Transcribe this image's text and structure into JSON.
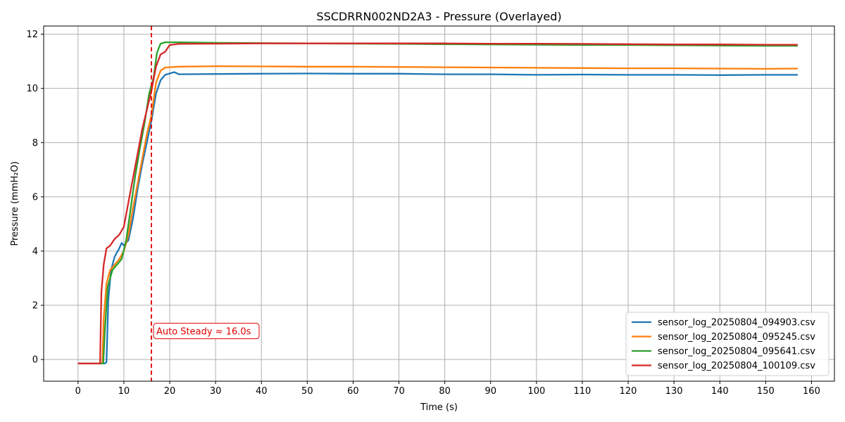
{
  "chart_data": {
    "type": "line",
    "title": "SSCDRRN002ND2A3 - Pressure (Overlayed)",
    "xlabel": "Time (s)",
    "ylabel": "Pressure (mmH₂O)",
    "xlim": [
      -7.5,
      165
    ],
    "ylim": [
      -0.8,
      12.3
    ],
    "xticks": [
      0,
      10,
      20,
      30,
      40,
      50,
      60,
      70,
      80,
      90,
      100,
      110,
      120,
      130,
      140,
      150,
      160
    ],
    "yticks": [
      0,
      2,
      4,
      6,
      8,
      10,
      12
    ],
    "grid": true,
    "legend_position": "lower right",
    "annotation": {
      "text": "Auto Steady ≈ 16.0s",
      "x_line": 16.0,
      "color": "#e00000"
    },
    "series": [
      {
        "name": "sensor_log_20250804_094903.csv",
        "color": "#1f77b4",
        "points": [
          [
            0,
            -0.15
          ],
          [
            5.8,
            -0.15
          ],
          [
            6.2,
            -0.1
          ],
          [
            6.6,
            2.2
          ],
          [
            7.2,
            3.3
          ],
          [
            8,
            3.8
          ],
          [
            9,
            4.1
          ],
          [
            9.5,
            4.3
          ],
          [
            10,
            4.2
          ],
          [
            11,
            4.4
          ],
          [
            12,
            5.2
          ],
          [
            13,
            6.3
          ],
          [
            14,
            7.2
          ],
          [
            15,
            8.0
          ],
          [
            16,
            8.8
          ],
          [
            17,
            9.8
          ],
          [
            18,
            10.3
          ],
          [
            19,
            10.5
          ],
          [
            20,
            10.55
          ],
          [
            21,
            10.6
          ],
          [
            22,
            10.52
          ],
          [
            30,
            10.53
          ],
          [
            40,
            10.54
          ],
          [
            50,
            10.55
          ],
          [
            60,
            10.54
          ],
          [
            70,
            10.54
          ],
          [
            80,
            10.52
          ],
          [
            90,
            10.52
          ],
          [
            100,
            10.5
          ],
          [
            110,
            10.51
          ],
          [
            120,
            10.5
          ],
          [
            130,
            10.5
          ],
          [
            140,
            10.49
          ],
          [
            150,
            10.5
          ],
          [
            157,
            10.5
          ]
        ]
      },
      {
        "name": "sensor_log_20250804_095245.csv",
        "color": "#ff7f0e",
        "points": [
          [
            0,
            -0.15
          ],
          [
            5.3,
            -0.15
          ],
          [
            5.6,
            1.5
          ],
          [
            6.2,
            2.8
          ],
          [
            7,
            3.3
          ],
          [
            8,
            3.5
          ],
          [
            9,
            3.7
          ],
          [
            10,
            4.0
          ],
          [
            11,
            4.6
          ],
          [
            12,
            5.6
          ],
          [
            13,
            6.5
          ],
          [
            14,
            7.4
          ],
          [
            15,
            8.3
          ],
          [
            16,
            9.0
          ],
          [
            17,
            10.2
          ],
          [
            18,
            10.65
          ],
          [
            19,
            10.77
          ],
          [
            22,
            10.8
          ],
          [
            30,
            10.82
          ],
          [
            40,
            10.81
          ],
          [
            50,
            10.8
          ],
          [
            60,
            10.8
          ],
          [
            70,
            10.79
          ],
          [
            80,
            10.78
          ],
          [
            90,
            10.77
          ],
          [
            100,
            10.76
          ],
          [
            110,
            10.75
          ],
          [
            120,
            10.74
          ],
          [
            130,
            10.74
          ],
          [
            140,
            10.73
          ],
          [
            150,
            10.72
          ],
          [
            157,
            10.73
          ]
        ]
      },
      {
        "name": "sensor_log_20250804_095641.csv",
        "color": "#2ca02c",
        "points": [
          [
            0,
            -0.15
          ],
          [
            5.5,
            -0.15
          ],
          [
            5.9,
            1.2
          ],
          [
            6.5,
            2.7
          ],
          [
            7.5,
            3.3
          ],
          [
            8.5,
            3.5
          ],
          [
            9.5,
            3.7
          ],
          [
            10.5,
            4.4
          ],
          [
            11.5,
            5.6
          ],
          [
            12.5,
            6.8
          ],
          [
            13.5,
            7.8
          ],
          [
            14.5,
            8.7
          ],
          [
            15.5,
            9.8
          ],
          [
            16.5,
            10.4
          ],
          [
            17.2,
            11.3
          ],
          [
            18,
            11.65
          ],
          [
            19,
            11.7
          ],
          [
            21,
            11.7
          ],
          [
            30,
            11.68
          ],
          [
            40,
            11.67
          ],
          [
            50,
            11.66
          ],
          [
            60,
            11.65
          ],
          [
            70,
            11.64
          ],
          [
            80,
            11.63
          ],
          [
            90,
            11.62
          ],
          [
            100,
            11.61
          ],
          [
            110,
            11.6
          ],
          [
            120,
            11.6
          ],
          [
            130,
            11.59
          ],
          [
            140,
            11.58
          ],
          [
            150,
            11.57
          ],
          [
            157,
            11.57
          ]
        ]
      },
      {
        "name": "sensor_log_20250804_100109.csv",
        "color": "#d62728",
        "points": [
          [
            0,
            -0.15
          ],
          [
            4.8,
            -0.15
          ],
          [
            5.1,
            2.5
          ],
          [
            5.6,
            3.5
          ],
          [
            6.2,
            4.1
          ],
          [
            7,
            4.2
          ],
          [
            8,
            4.45
          ],
          [
            9,
            4.6
          ],
          [
            10,
            4.9
          ],
          [
            11,
            5.8
          ],
          [
            12,
            6.7
          ],
          [
            13,
            7.6
          ],
          [
            14,
            8.5
          ],
          [
            15,
            9.2
          ],
          [
            16,
            9.9
          ],
          [
            17,
            10.8
          ],
          [
            18,
            11.25
          ],
          [
            19,
            11.35
          ],
          [
            20,
            11.6
          ],
          [
            22,
            11.64
          ],
          [
            30,
            11.65
          ],
          [
            40,
            11.66
          ],
          [
            50,
            11.66
          ],
          [
            60,
            11.66
          ],
          [
            70,
            11.66
          ],
          [
            80,
            11.66
          ],
          [
            90,
            11.65
          ],
          [
            100,
            11.65
          ],
          [
            110,
            11.64
          ],
          [
            120,
            11.63
          ],
          [
            130,
            11.62
          ],
          [
            140,
            11.62
          ],
          [
            150,
            11.61
          ],
          [
            157,
            11.61
          ]
        ]
      }
    ]
  }
}
